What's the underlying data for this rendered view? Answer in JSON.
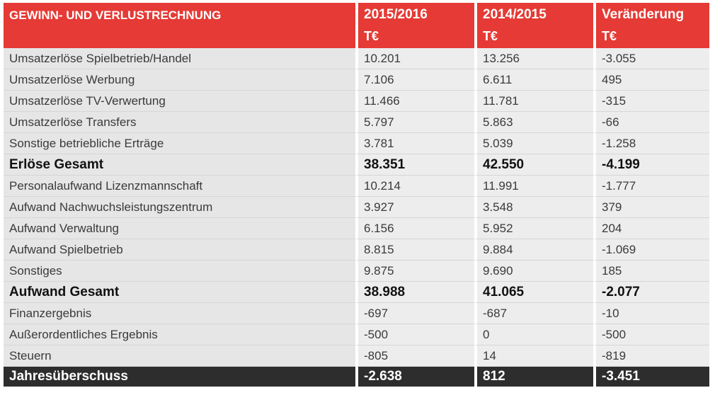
{
  "header": {
    "title": "GEWINN- UND VERLUSTRECHNUNG",
    "columns": [
      {
        "label": "2015/2016",
        "unit": "T€"
      },
      {
        "label": "2014/2015",
        "unit": "T€"
      },
      {
        "label": "Veränderung",
        "unit": "T€"
      }
    ]
  },
  "rows": [
    {
      "label": "Umsatzerlöse Spielbetrieb/Handel",
      "v1": "10.201",
      "v2": "13.256",
      "v3": "-3.055",
      "style": "normal"
    },
    {
      "label": "Umsatzerlöse Werbung",
      "v1": "7.106",
      "v2": "6.611",
      "v3": "495",
      "style": "normal"
    },
    {
      "label": "Umsatzerlöse TV-Verwertung",
      "v1": "11.466",
      "v2": "11.781",
      "v3": "-315",
      "style": "normal"
    },
    {
      "label": "Umsatzerlöse Transfers",
      "v1": "5.797",
      "v2": "5.863",
      "v3": "-66",
      "style": "normal"
    },
    {
      "label": "Sonstige betriebliche Erträge",
      "v1": "3.781",
      "v2": "5.039",
      "v3": "-1.258",
      "style": "normal"
    },
    {
      "label": "Erlöse Gesamt",
      "v1": "38.351",
      "v2": "42.550",
      "v3": "-4.199",
      "style": "bold"
    },
    {
      "label": "Personalaufwand Lizenzmannschaft",
      "v1": "10.214",
      "v2": "11.991",
      "v3": "-1.777",
      "style": "normal"
    },
    {
      "label": "Aufwand Nachwuchsleistungszentrum",
      "v1": "3.927",
      "v2": "3.548",
      "v3": "379",
      "style": "normal"
    },
    {
      "label": "Aufwand Verwaltung",
      "v1": "6.156",
      "v2": "5.952",
      "v3": "204",
      "style": "normal"
    },
    {
      "label": "Aufwand Spielbetrieb",
      "v1": "8.815",
      "v2": "9.884",
      "v3": "-1.069",
      "style": "normal"
    },
    {
      "label": "Sonstiges",
      "v1": "9.875",
      "v2": "9.690",
      "v3": "185",
      "style": "normal"
    },
    {
      "label": "Aufwand Gesamt",
      "v1": "38.988",
      "v2": "41.065",
      "v3": "-2.077",
      "style": "bold"
    },
    {
      "label": "Finanzergebnis",
      "v1": "-697",
      "v2": "-687",
      "v3": "-10",
      "style": "normal"
    },
    {
      "label": "Außerordentliches Ergebnis",
      "v1": "-500",
      "v2": "0",
      "v3": "-500",
      "style": "normal"
    },
    {
      "label": "Steuern",
      "v1": "-805",
      "v2": "14",
      "v3": "-819",
      "style": "normal"
    },
    {
      "label": "Jahresüberschuss",
      "v1": "-2.638",
      "v2": "812",
      "v3": "-3.451",
      "style": "total"
    }
  ],
  "colors": {
    "header_bg": "#e53a35",
    "total_bg": "#2d2d2d",
    "row_bg": "#e6e6e6"
  }
}
